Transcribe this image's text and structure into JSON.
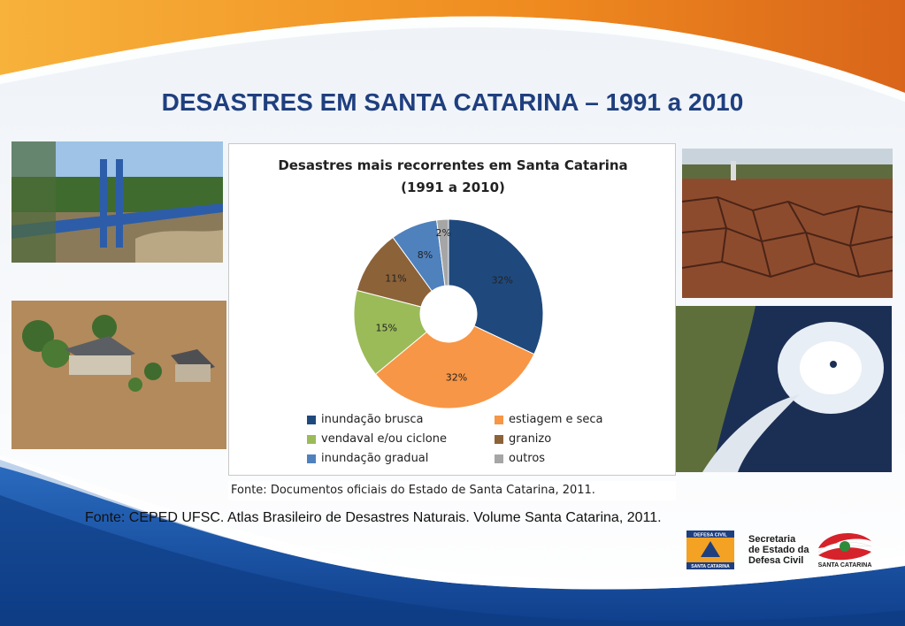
{
  "slide": {
    "title": "DESASTRES EM SANTA CATARINA – 1991 a 2010",
    "footer_source": "Fonte: CEPED UFSC. Atlas Brasileiro de Desastres Naturais. Volume Santa Catarina, 2011."
  },
  "photos": [
    {
      "icon": "flood-bridge-photo"
    },
    {
      "icon": "flooded-houses-photo"
    },
    {
      "icon": "drought-cracked-soil-photo"
    },
    {
      "icon": "cyclone-satellite-photo"
    }
  ],
  "chart_data": {
    "type": "pie",
    "title_line1": "Desastres mais recorrentes em Santa Catarina",
    "title_line2": "(1991 a 2010)",
    "donut": true,
    "legend_position": "bottom",
    "slices": [
      {
        "label": "inundação brusca",
        "value": 32,
        "value_label": "32%",
        "color": "#1f497d"
      },
      {
        "label": "estiagem e seca",
        "value": 32,
        "value_label": "32%",
        "color": "#f79646"
      },
      {
        "label": "vendaval e/ou ciclone",
        "value": 15,
        "value_label": "15%",
        "color": "#9bbb59"
      },
      {
        "label": "granizo",
        "value": 11,
        "value_label": "11%",
        "color": "#8c6239"
      },
      {
        "label": "inundação gradual",
        "value": 8,
        "value_label": "8%",
        "color": "#4f81bd"
      },
      {
        "label": "outros",
        "value": 2,
        "value_label": "2%",
        "color": "#a6a6a6"
      }
    ],
    "source_note": "Fonte: Documentos oficiais do Estado de Santa Catarina, 2011."
  },
  "logos": {
    "defesa_civil_badge_line1": "DEFESA CIVIL",
    "defesa_civil_badge_line2": "SANTA CATARINA",
    "secretaria_line1": "Secretaria",
    "secretaria_line2": "de Estado da",
    "secretaria_line3": "Defesa Civil",
    "sc_caption": "SANTA CATARINA"
  }
}
